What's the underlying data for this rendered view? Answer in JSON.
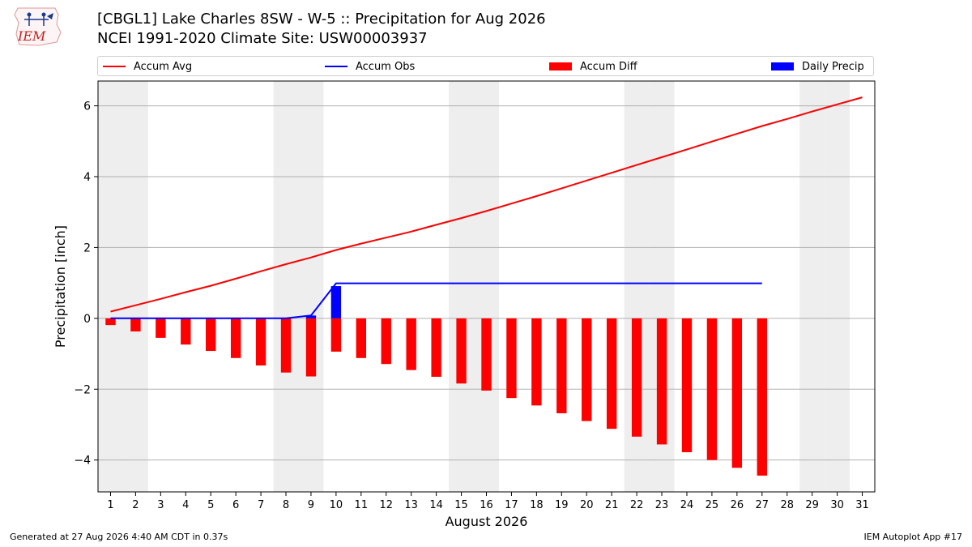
{
  "header": {
    "logo_text": "IEM",
    "title_line1": "[CBGL1] Lake Charles 8SW - W-5 :: Precipitation for Aug 2026",
    "title_line2": "NCEI 1991-2020 Climate Site: USW00003937"
  },
  "legend": {
    "items": [
      {
        "label": "Accum Avg",
        "kind": "line",
        "color": "#ff0000"
      },
      {
        "label": "Accum Obs",
        "kind": "line",
        "color": "#0000ff"
      },
      {
        "label": "Accum Diff",
        "kind": "bar",
        "color": "#ff0000"
      },
      {
        "label": "Daily Precip",
        "kind": "bar",
        "color": "#0000ff"
      }
    ]
  },
  "footer": {
    "generated": "Generated at 27 Aug 2026 4:40 AM CDT in 0.37s",
    "app": "IEM Autoplot App #17"
  },
  "chart_data": {
    "type": "bar",
    "xlabel": "August 2026",
    "ylabel": "Precipitation [inch]",
    "xlim": [
      0.5,
      31.5
    ],
    "ylim": [
      -4.9,
      6.7
    ],
    "yticks": [
      -4,
      -2,
      0,
      2,
      4,
      6
    ],
    "ytick_labels": [
      "−4",
      "−2",
      "0",
      "2",
      "4",
      "6"
    ],
    "days": [
      1,
      2,
      3,
      4,
      5,
      6,
      7,
      8,
      9,
      10,
      11,
      12,
      13,
      14,
      15,
      16,
      17,
      18,
      19,
      20,
      21,
      22,
      23,
      24,
      25,
      26,
      27,
      28,
      29,
      30,
      31
    ],
    "weekend_days": [
      1,
      2,
      8,
      9,
      15,
      16,
      22,
      23,
      29,
      30
    ],
    "grid": "horizontal",
    "legend_position": "top",
    "series": [
      {
        "name": "Accum Avg",
        "type": "line",
        "color": "#ff0000",
        "x": [
          1,
          2,
          3,
          4,
          5,
          6,
          7,
          8,
          9,
          10,
          11,
          12,
          13,
          14,
          15,
          16,
          17,
          18,
          19,
          20,
          21,
          22,
          23,
          24,
          25,
          26,
          27,
          28,
          29,
          30,
          31
        ],
        "values": [
          0.19,
          0.37,
          0.55,
          0.74,
          0.92,
          1.12,
          1.33,
          1.53,
          1.72,
          1.93,
          2.11,
          2.28,
          2.45,
          2.64,
          2.83,
          3.03,
          3.24,
          3.45,
          3.67,
          3.89,
          4.11,
          4.33,
          4.55,
          4.77,
          4.99,
          5.21,
          5.43,
          5.63,
          5.84,
          6.04,
          6.24
        ]
      },
      {
        "name": "Accum Obs",
        "type": "line",
        "color": "#0000ff",
        "x": [
          1,
          2,
          3,
          4,
          5,
          6,
          7,
          8,
          9,
          10,
          11,
          12,
          13,
          14,
          15,
          16,
          17,
          18,
          19,
          20,
          21,
          22,
          23,
          24,
          25,
          26,
          27
        ],
        "values": [
          0.0,
          0.0,
          0.0,
          0.0,
          0.0,
          0.0,
          0.0,
          0.0,
          0.08,
          0.99,
          0.99,
          0.99,
          0.99,
          0.99,
          0.99,
          0.99,
          0.99,
          0.99,
          0.99,
          0.99,
          0.99,
          0.99,
          0.99,
          0.99,
          0.99,
          0.99,
          0.99
        ]
      },
      {
        "name": "Accum Diff",
        "type": "bar",
        "color": "#ff0000",
        "x": [
          1,
          2,
          3,
          4,
          5,
          6,
          7,
          8,
          9,
          10,
          11,
          12,
          13,
          14,
          15,
          16,
          17,
          18,
          19,
          20,
          21,
          22,
          23,
          24,
          25,
          26,
          27
        ],
        "values": [
          -0.19,
          -0.37,
          -0.55,
          -0.74,
          -0.92,
          -1.12,
          -1.33,
          -1.53,
          -1.64,
          -0.94,
          -1.12,
          -1.29,
          -1.46,
          -1.65,
          -1.84,
          -2.04,
          -2.25,
          -2.46,
          -2.68,
          -2.9,
          -3.12,
          -3.34,
          -3.56,
          -3.78,
          -4.0,
          -4.22,
          -4.44
        ]
      },
      {
        "name": "Daily Precip",
        "type": "bar",
        "color": "#0000ff",
        "x": [
          9,
          10
        ],
        "values": [
          0.08,
          0.91
        ]
      }
    ]
  }
}
